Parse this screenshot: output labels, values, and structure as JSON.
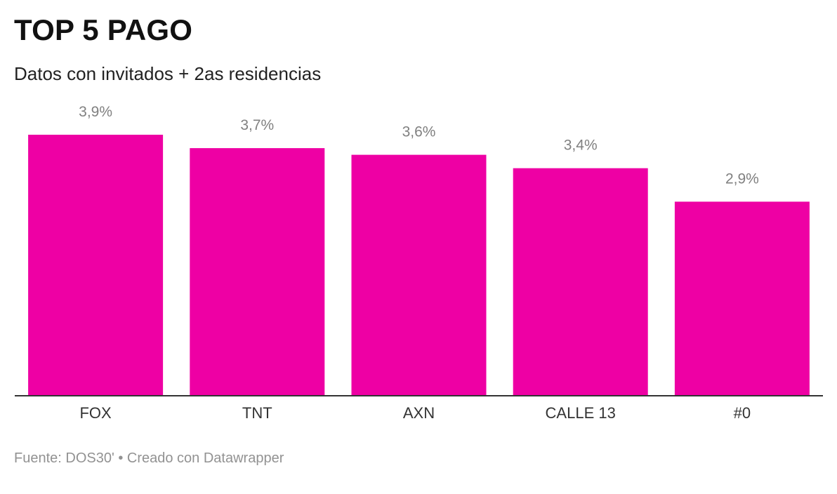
{
  "header": {
    "title": "TOP 5 PAGO",
    "subtitle": "Datos con invitados + 2as residencias"
  },
  "footer": {
    "source": "Fuente: DOS30' • Creado con Datawrapper"
  },
  "colors": {
    "bar": "#EE00A4",
    "baseline": "#333333",
    "value_label": "#808080"
  },
  "chart_data": {
    "type": "bar",
    "title": "TOP 5 PAGO",
    "subtitle": "Datos con invitados + 2as residencias",
    "categories": [
      "FOX",
      "TNT",
      "AXN",
      "CALLE 13",
      "#0"
    ],
    "values": [
      3.9,
      3.7,
      3.6,
      3.4,
      2.9
    ],
    "value_labels": [
      "3,9%",
      "3,7%",
      "3,6%",
      "3,4%",
      "2,9%"
    ],
    "ylim": [
      0,
      3.9
    ],
    "grid": false,
    "legend": "none"
  }
}
